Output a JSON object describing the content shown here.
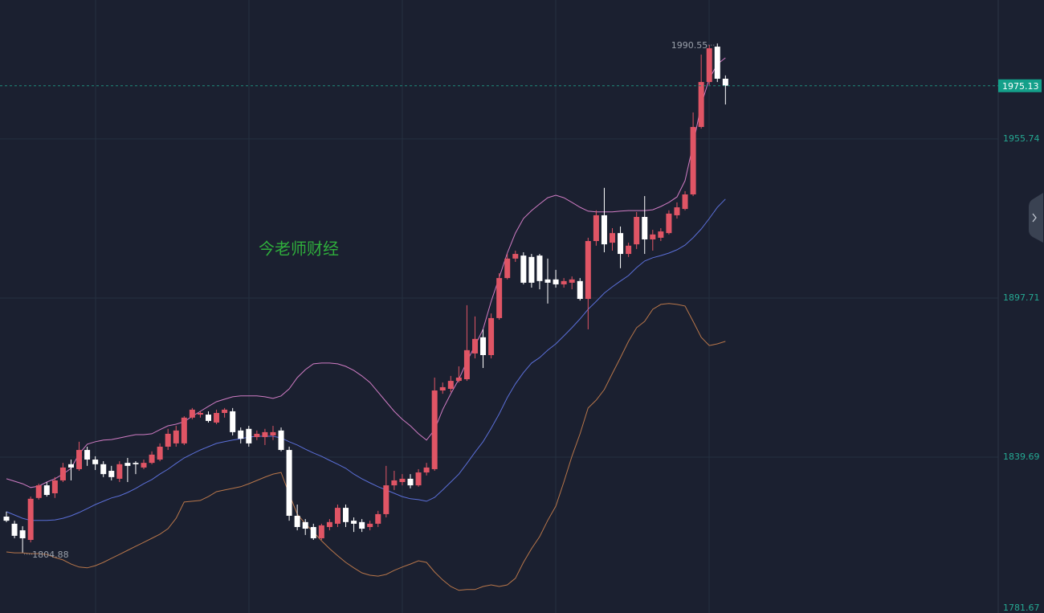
{
  "chart_data": {
    "type": "candlestick",
    "watermark": "今老师财经",
    "up_color": "#e05565",
    "down_color": "#ffffff",
    "ylim": [
      1781.67,
      2006.41
    ],
    "yticks": [
      1781.67,
      1839.69,
      1897.71,
      1955.74
    ],
    "grid": true,
    "open": [
      1818.0,
      1815.4,
      1813.0,
      1809.5,
      1824.8,
      1829.4,
      1826.5,
      1831.2,
      1837.1,
      1835.3,
      1842.3,
      1838.8,
      1837.1,
      1834.7,
      1831.8,
      1837.6,
      1837.6,
      1835.9,
      1837.6,
      1838.8,
      1843.5,
      1844.7,
      1844.7,
      1854.1,
      1855.2,
      1855.2,
      1852.3,
      1855.8,
      1856.4,
      1849.4,
      1850.0,
      1847.0,
      1847.0,
      1847.6,
      1849.4,
      1842.3,
      1818.3,
      1816.0,
      1814.2,
      1810.1,
      1814.2,
      1815.4,
      1821.2,
      1816.5,
      1816.0,
      1814.2,
      1815.4,
      1818.9,
      1829.4,
      1830.6,
      1831.8,
      1829.4,
      1834.1,
      1835.3,
      1864.0,
      1864.6,
      1867.5,
      1868.1,
      1877.5,
      1883.4,
      1876.9,
      1890.4,
      1905.0,
      1912.1,
      1913.2,
      1912.7,
      1913.2,
      1904.5,
      1904.5,
      1902.7,
      1903.3,
      1903.9,
      1897.4,
      1918.5,
      1927.9,
      1917.9,
      1921.4,
      1913.8,
      1917.3,
      1927.3,
      1919.1,
      1919.7,
      1921.4,
      1927.9,
      1930.2,
      1935.5,
      1960.1,
      1976.5,
      1989.4,
      1977.7
    ],
    "high": [
      1819.8,
      1816.5,
      1814.5,
      1825.3,
      1830.0,
      1830.6,
      1832.4,
      1837.6,
      1838.8,
      1845.3,
      1843.5,
      1840.0,
      1838.2,
      1836.5,
      1838.2,
      1839.4,
      1838.2,
      1838.8,
      1841.8,
      1844.7,
      1850.0,
      1851.1,
      1854.6,
      1857.6,
      1856.4,
      1856.4,
      1857.0,
      1857.6,
      1857.6,
      1850.5,
      1851.1,
      1849.4,
      1850.0,
      1851.1,
      1850.5,
      1843.5,
      1822.4,
      1817.1,
      1815.4,
      1815.4,
      1817.1,
      1822.4,
      1822.4,
      1817.7,
      1817.1,
      1816.5,
      1820.1,
      1836.5,
      1834.7,
      1833.5,
      1833.5,
      1835.3,
      1837.6,
      1868.7,
      1866.9,
      1869.3,
      1872.8,
      1895.1,
      1891.0,
      1886.3,
      1892.1,
      1906.8,
      1913.8,
      1915.0,
      1914.4,
      1913.8,
      1913.8,
      1912.1,
      1908.0,
      1905.0,
      1905.6,
      1905.0,
      1919.7,
      1929.7,
      1937.9,
      1923.2,
      1923.8,
      1917.9,
      1929.1,
      1934.9,
      1922.6,
      1923.2,
      1929.7,
      1932.6,
      1936.7,
      1965.4,
      1986.5,
      1990.0,
      1990.55,
      1978.9
    ],
    "low": [
      1816.0,
      1810.1,
      1804.88,
      1808.6,
      1824.2,
      1825.3,
      1824.8,
      1830.6,
      1831.2,
      1834.7,
      1836.5,
      1835.0,
      1832.4,
      1831.2,
      1830.6,
      1830.6,
      1833.5,
      1835.3,
      1837.1,
      1838.2,
      1842.3,
      1843.5,
      1844.1,
      1853.5,
      1854.1,
      1852.3,
      1851.7,
      1854.1,
      1847.6,
      1844.7,
      1843.5,
      1845.9,
      1844.1,
      1845.9,
      1841.8,
      1816.5,
      1813.0,
      1811.3,
      1809.5,
      1809.5,
      1813.0,
      1814.2,
      1814.2,
      1812.4,
      1812.4,
      1813.0,
      1814.2,
      1817.7,
      1827.7,
      1829.4,
      1828.3,
      1828.9,
      1833.0,
      1834.7,
      1862.8,
      1863.4,
      1866.9,
      1867.5,
      1875.7,
      1872.2,
      1875.7,
      1889.8,
      1904.5,
      1910.9,
      1902.7,
      1901.5,
      1900.9,
      1895.7,
      1901.5,
      1901.5,
      1900.9,
      1896.8,
      1886.3,
      1916.8,
      1914.4,
      1915.0,
      1908.6,
      1912.7,
      1915.6,
      1913.8,
      1915.0,
      1918.5,
      1920.9,
      1926.7,
      1929.7,
      1934.9,
      1959.5,
      1975.4,
      1976.5,
      1968.3
    ],
    "close": [
      1816.5,
      1811.0,
      1810.1,
      1824.5,
      1829.4,
      1825.9,
      1831.2,
      1835.9,
      1835.9,
      1842.3,
      1838.8,
      1837.1,
      1833.5,
      1832.4,
      1837.1,
      1836.5,
      1837.1,
      1837.6,
      1840.6,
      1843.5,
      1848.2,
      1849.4,
      1854.1,
      1857.0,
      1855.8,
      1852.9,
      1855.8,
      1857.0,
      1848.8,
      1846.4,
      1844.7,
      1848.2,
      1848.8,
      1848.8,
      1842.3,
      1818.3,
      1814.2,
      1813.6,
      1810.1,
      1814.8,
      1816.0,
      1821.2,
      1816.0,
      1815.4,
      1813.6,
      1815.4,
      1818.9,
      1829.4,
      1831.2,
      1831.8,
      1829.4,
      1834.1,
      1835.9,
      1864.0,
      1865.2,
      1867.5,
      1868.7,
      1878.7,
      1882.8,
      1876.9,
      1890.4,
      1905.0,
      1912.1,
      1913.8,
      1903.3,
      1903.3,
      1903.9,
      1903.3,
      1902.7,
      1903.9,
      1904.5,
      1897.4,
      1918.5,
      1927.9,
      1917.3,
      1921.4,
      1913.8,
      1916.8,
      1927.3,
      1919.1,
      1920.9,
      1922.0,
      1928.5,
      1930.8,
      1935.5,
      1960.1,
      1976.5,
      1988.8,
      1977.7,
      1975.13
    ],
    "series": [
      {
        "color": "#d07cc4",
        "values": [
          1831.8,
          1830.9,
          1830.0,
          1828.6,
          1829.1,
          1830.6,
          1831.8,
          1833.5,
          1835.6,
          1840.9,
          1844.4,
          1845.3,
          1845.9,
          1846.1,
          1846.7,
          1847.3,
          1847.9,
          1847.9,
          1848.2,
          1849.7,
          1851.1,
          1851.7,
          1852.6,
          1854.6,
          1856.4,
          1858.2,
          1859.9,
          1860.8,
          1861.7,
          1862.0,
          1862.0,
          1862.0,
          1861.7,
          1861.1,
          1862.0,
          1864.6,
          1868.7,
          1871.6,
          1873.7,
          1874.0,
          1874.0,
          1873.7,
          1872.8,
          1871.3,
          1869.3,
          1866.9,
          1863.4,
          1859.9,
          1856.4,
          1853.5,
          1851.1,
          1848.2,
          1845.9,
          1849.7,
          1857.0,
          1862.8,
          1868.1,
          1874.6,
          1880.4,
          1886.3,
          1896.5,
          1905.3,
          1914.1,
          1921.4,
          1926.7,
          1929.6,
          1932.0,
          1934.3,
          1935.2,
          1934.3,
          1932.6,
          1930.8,
          1929.4,
          1929.1,
          1929.1,
          1929.1,
          1929.4,
          1929.6,
          1929.6,
          1929.6,
          1929.9,
          1931.1,
          1932.6,
          1934.6,
          1940.5,
          1953.7,
          1968.3,
          1977.7,
          1983.0,
          1985.3
        ]
      },
      {
        "color": "#5b6fd8",
        "values": [
          1819.8,
          1818.6,
          1817.4,
          1816.6,
          1816.6,
          1816.6,
          1816.8,
          1817.4,
          1818.3,
          1819.5,
          1820.9,
          1822.4,
          1823.6,
          1824.8,
          1825.6,
          1826.8,
          1828.3,
          1830.0,
          1831.5,
          1833.5,
          1835.3,
          1837.4,
          1839.4,
          1840.9,
          1842.3,
          1843.5,
          1844.7,
          1845.3,
          1845.9,
          1846.4,
          1847.0,
          1847.3,
          1847.3,
          1847.3,
          1846.7,
          1845.3,
          1844.1,
          1842.6,
          1841.2,
          1840.0,
          1838.5,
          1837.1,
          1835.6,
          1833.5,
          1831.8,
          1830.3,
          1828.9,
          1827.7,
          1826.5,
          1825.3,
          1824.5,
          1824.2,
          1823.6,
          1825.0,
          1827.7,
          1830.6,
          1833.5,
          1837.4,
          1841.5,
          1845.3,
          1850.2,
          1855.5,
          1861.4,
          1866.4,
          1870.5,
          1874.0,
          1876.0,
          1878.7,
          1881.0,
          1883.9,
          1886.9,
          1890.1,
          1893.6,
          1896.5,
          1899.5,
          1901.8,
          1903.9,
          1905.9,
          1908.8,
          1911.2,
          1912.4,
          1913.2,
          1914.1,
          1915.3,
          1917.0,
          1919.7,
          1922.9,
          1926.7,
          1930.8,
          1933.8
        ]
      },
      {
        "color": "#b8764a",
        "values": [
          1805.1,
          1804.8,
          1804.8,
          1804.5,
          1804.5,
          1804.2,
          1803.1,
          1802.2,
          1800.7,
          1799.6,
          1799.3,
          1800.1,
          1801.3,
          1802.8,
          1804.2,
          1805.7,
          1807.2,
          1808.6,
          1810.1,
          1811.6,
          1813.6,
          1817.4,
          1823.3,
          1823.6,
          1823.9,
          1825.3,
          1827.1,
          1827.7,
          1828.3,
          1828.9,
          1830.0,
          1831.2,
          1832.4,
          1833.5,
          1834.1,
          1826.2,
          1818.9,
          1815.4,
          1812.4,
          1809.2,
          1806.3,
          1803.7,
          1801.3,
          1799.3,
          1797.5,
          1796.6,
          1796.3,
          1796.9,
          1798.4,
          1799.6,
          1800.7,
          1801.9,
          1801.3,
          1797.8,
          1794.9,
          1792.5,
          1791.1,
          1791.4,
          1791.4,
          1792.5,
          1793.1,
          1792.5,
          1793.1,
          1795.5,
          1801.3,
          1806.3,
          1810.7,
          1816.6,
          1821.8,
          1830.6,
          1840.0,
          1848.2,
          1857.6,
          1860.5,
          1864.3,
          1870.2,
          1876.0,
          1881.9,
          1886.9,
          1889.2,
          1893.6,
          1895.4,
          1895.7,
          1895.4,
          1894.8,
          1889.2,
          1883.4,
          1880.4,
          1881.0,
          1881.9
        ]
      }
    ]
  }
}
